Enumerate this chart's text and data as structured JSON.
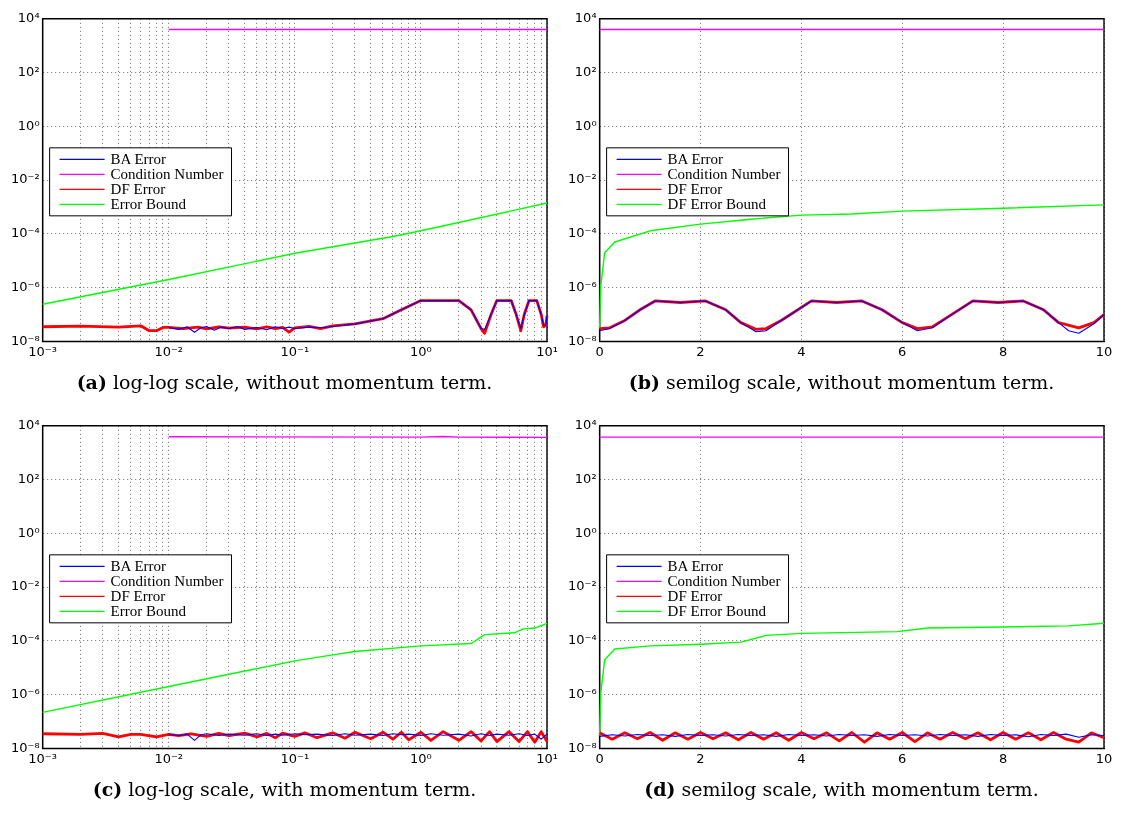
{
  "chart_data": [
    {
      "type": "line",
      "title": "(a) log-log scale, without momentum term.",
      "log": "xy",
      "grid": true,
      "legend": "left",
      "marker": "none",
      "xlim": [
        0.001,
        10
      ],
      "ylim": [
        1e-08,
        10000
      ],
      "xticks": [
        {
          "value": 0.001,
          "label": "10⁻³"
        },
        {
          "value": 0.002,
          "label": null
        },
        {
          "value": 0.003,
          "label": null
        },
        {
          "value": 0.004,
          "label": null
        },
        {
          "value": 0.005,
          "label": null
        },
        {
          "value": 0.006,
          "label": null
        },
        {
          "value": 0.007,
          "label": null
        },
        {
          "value": 0.008,
          "label": null
        },
        {
          "value": 0.009,
          "label": null
        },
        {
          "value": 0.01,
          "label": "10⁻²"
        },
        {
          "value": 0.02,
          "label": null
        },
        {
          "value": 0.03,
          "label": null
        },
        {
          "value": 0.04,
          "label": null
        },
        {
          "value": 0.05,
          "label": null
        },
        {
          "value": 0.06,
          "label": null
        },
        {
          "value": 0.07,
          "label": null
        },
        {
          "value": 0.08,
          "label": null
        },
        {
          "value": 0.09,
          "label": null
        },
        {
          "value": 0.1,
          "label": "10⁻¹"
        },
        {
          "value": 0.2,
          "label": null
        },
        {
          "value": 0.3,
          "label": null
        },
        {
          "value": 0.4,
          "label": null
        },
        {
          "value": 0.5,
          "label": null
        },
        {
          "value": 0.6,
          "label": null
        },
        {
          "value": 0.7,
          "label": null
        },
        {
          "value": 0.8,
          "label": null
        },
        {
          "value": 0.9,
          "label": null
        },
        {
          "value": 1,
          "label": "10⁰"
        },
        {
          "value": 2,
          "label": null
        },
        {
          "value": 3,
          "label": null
        },
        {
          "value": 4,
          "label": null
        },
        {
          "value": 5,
          "label": null
        },
        {
          "value": 6,
          "label": null
        },
        {
          "value": 7,
          "label": null
        },
        {
          "value": 8,
          "label": null
        },
        {
          "value": 9,
          "label": null
        },
        {
          "value": 10,
          "label": "10¹"
        }
      ],
      "yticks": [
        {
          "value": 1e-08,
          "label": "10⁻⁸"
        },
        {
          "value": 1e-06,
          "label": "10⁻⁶"
        },
        {
          "value": 0.0001,
          "label": "10⁻⁴"
        },
        {
          "value": 0.01,
          "label": "10⁻²"
        },
        {
          "value": 1,
          "label": "10⁰"
        },
        {
          "value": 100,
          "label": "10²"
        },
        {
          "value": 10000,
          "label": "10⁴"
        }
      ],
      "series": [
        {
          "name": "BA Error",
          "type": "line",
          "color": "#0000ff",
          "x": [
            0.01,
            0.012,
            0.014,
            0.016,
            0.018,
            0.02,
            0.023,
            0.026,
            0.03,
            0.035,
            0.04,
            0.05,
            0.06,
            0.07,
            0.08,
            0.09,
            0.1,
            0.13,
            0.16,
            0.2,
            0.3,
            0.5,
            0.7,
            1,
            2,
            2.5,
            3,
            3.2,
            3.6,
            4,
            5.2,
            5.7,
            6.2,
            6.6,
            7.2,
            8.3,
            9,
            9.4,
            9.8,
            10
          ],
          "values": [
            3.3e-08,
            2.8e-08,
            3.5e-08,
            2.2e-08,
            3.2e-08,
            3.6e-08,
            2.6e-08,
            3.4e-08,
            3e-08,
            3.6e-08,
            2.8e-08,
            3.3e-08,
            2.7e-08,
            3.5e-08,
            3e-08,
            3.4e-08,
            3e-08,
            3.4e-08,
            3.2e-08,
            3.6e-08,
            4.5e-08,
            7e-08,
            1.5e-07,
            3.3e-07,
            3.3e-07,
            1.5e-07,
            3e-08,
            2.8e-08,
            1e-07,
            3.3e-07,
            3.3e-07,
            1e-07,
            3e-08,
            1e-07,
            3.3e-07,
            3.3e-07,
            1e-07,
            4e-08,
            4e-08,
            9e-08
          ]
        },
        {
          "name": "Condition Number",
          "type": "line",
          "color": "#ff00ff",
          "x": [
            0.01,
            10
          ],
          "values": [
            4000,
            4000
          ]
        },
        {
          "name": "DF Error",
          "type": "line",
          "color": "#ff0000",
          "x": [
            0.001,
            0.002,
            0.004,
            0.006,
            0.007,
            0.008,
            0.009,
            0.01,
            0.013,
            0.017,
            0.02,
            0.025,
            0.03,
            0.04,
            0.05,
            0.06,
            0.07,
            0.08,
            0.09,
            0.1,
            0.13,
            0.16,
            0.2,
            0.3,
            0.5,
            0.7,
            1,
            2,
            2.5,
            3,
            3.2,
            3.6,
            4,
            5.2,
            5.7,
            6.2,
            6.6,
            7.2,
            8.3,
            9,
            9.4,
            9.8,
            10
          ],
          "values": [
            3.5e-08,
            3.7e-08,
            3.4e-08,
            3.8e-08,
            2.5e-08,
            2.5e-08,
            3.3e-08,
            3.3e-08,
            3e-08,
            3.4e-08,
            2.9e-08,
            3.5e-08,
            3.1e-08,
            3.4e-08,
            2.9e-08,
            3.5e-08,
            3e-08,
            3.3e-08,
            2.2e-08,
            3.2e-08,
            3.6e-08,
            3e-08,
            3.8e-08,
            4.5e-08,
            7e-08,
            1.5e-07,
            3.3e-07,
            3.3e-07,
            1.5e-07,
            3e-08,
            2e-08,
            1e-07,
            3.3e-07,
            3.3e-07,
            1e-07,
            2.5e-08,
            1e-07,
            3.3e-07,
            3.3e-07,
            1e-07,
            3.5e-08,
            4e-08,
            9e-08
          ]
        },
        {
          "name": "Error Bound",
          "type": "line",
          "color": "#00ff00",
          "x": [
            0.001,
            0.01,
            0.1,
            0.6,
            1,
            10
          ],
          "values": [
            2.4e-07,
            2e-06,
            1.9e-05,
            8e-05,
            0.00013,
            0.0014
          ]
        }
      ]
    },
    {
      "type": "line",
      "title": "(b) semilog scale, without momentum term.",
      "log": "y",
      "grid": true,
      "legend": "left",
      "marker": "none",
      "xlim": [
        0,
        10
      ],
      "ylim": [
        1e-08,
        10000
      ],
      "xticks": [
        0,
        2,
        4,
        6,
        8,
        10
      ],
      "yticks": [
        {
          "value": 1e-08,
          "label": "10⁻⁸"
        },
        {
          "value": 1e-06,
          "label": "10⁻⁶"
        },
        {
          "value": 0.0001,
          "label": "10⁻⁴"
        },
        {
          "value": 0.01,
          "label": "10⁻²"
        },
        {
          "value": 1,
          "label": "10⁰"
        },
        {
          "value": 100,
          "label": "10²"
        },
        {
          "value": 10000,
          "label": "10⁴"
        }
      ],
      "series": [
        {
          "name": "BA Error",
          "type": "line",
          "color": "#0000ff",
          "x": [
            0,
            0.2,
            0.5,
            0.8,
            1.1,
            1.6,
            2.1,
            2.5,
            2.8,
            3.1,
            3.3,
            3.6,
            4.2,
            4.7,
            5.2,
            5.6,
            6,
            6.3,
            6.6,
            6.9,
            7.4,
            7.9,
            8.4,
            8.8,
            9.1,
            9.3,
            9.5,
            9.8,
            10
          ],
          "values": [
            2.5e-08,
            3e-08,
            6e-08,
            1.5e-07,
            3.2e-07,
            2.8e-07,
            3.2e-07,
            1.5e-07,
            5e-08,
            2.3e-08,
            2.5e-08,
            6e-08,
            3.2e-07,
            2.8e-07,
            3.2e-07,
            1.5e-07,
            5e-08,
            2.5e-08,
            3.2e-08,
            8e-08,
            3.2e-07,
            2.8e-07,
            3.2e-07,
            1.5e-07,
            5e-08,
            2.5e-08,
            2e-08,
            4.5e-08,
            1e-07
          ]
        },
        {
          "name": "Condition Number",
          "type": "line",
          "color": "#ff00ff",
          "x": [
            0,
            10
          ],
          "values": [
            4000,
            4000
          ]
        },
        {
          "name": "DF Error",
          "type": "line",
          "color": "#ff0000",
          "x": [
            0,
            0.2,
            0.5,
            0.8,
            1.1,
            1.6,
            2.1,
            2.5,
            2.8,
            3.1,
            3.3,
            3.6,
            4.2,
            4.7,
            5.2,
            5.6,
            6,
            6.3,
            6.6,
            6.9,
            7.4,
            7.9,
            8.4,
            8.8,
            9.1,
            9.5,
            9.8,
            10
          ],
          "values": [
            3e-08,
            3.2e-08,
            6e-08,
            1.5e-07,
            3.2e-07,
            2.8e-07,
            3.2e-07,
            1.5e-07,
            5e-08,
            2.8e-08,
            3e-08,
            6e-08,
            3.2e-07,
            2.8e-07,
            3.2e-07,
            1.5e-07,
            5e-08,
            3e-08,
            3.5e-08,
            8e-08,
            3.2e-07,
            2.8e-07,
            3.2e-07,
            1.5e-07,
            5e-08,
            3.2e-08,
            5e-08,
            1e-07
          ]
        },
        {
          "name": "DF Error Bound",
          "type": "line",
          "color": "#00ff00",
          "x": [
            0,
            0.02,
            0.1,
            0.3,
            1,
            2,
            3,
            4,
            5,
            6,
            8,
            10
          ],
          "values": [
            3e-08,
            1e-06,
            2e-05,
            5e-05,
            0.00013,
            0.00023,
            0.00035,
            0.0005,
            0.00055,
            0.0007,
            0.0009,
            0.0012
          ]
        }
      ]
    },
    {
      "type": "line",
      "title": "(c) log-log scale, with momentum term.",
      "log": "xy",
      "grid": true,
      "legend": "left",
      "marker": "none",
      "xlim": [
        0.001,
        10
      ],
      "ylim": [
        1e-08,
        10000
      ],
      "xticks": [
        {
          "value": 0.001,
          "label": "10⁻³"
        },
        {
          "value": 0.002,
          "label": null
        },
        {
          "value": 0.003,
          "label": null
        },
        {
          "value": 0.004,
          "label": null
        },
        {
          "value": 0.005,
          "label": null
        },
        {
          "value": 0.006,
          "label": null
        },
        {
          "value": 0.007,
          "label": null
        },
        {
          "value": 0.008,
          "label": null
        },
        {
          "value": 0.009,
          "label": null
        },
        {
          "value": 0.01,
          "label": "10⁻²"
        },
        {
          "value": 0.02,
          "label": null
        },
        {
          "value": 0.03,
          "label": null
        },
        {
          "value": 0.04,
          "label": null
        },
        {
          "value": 0.05,
          "label": null
        },
        {
          "value": 0.06,
          "label": null
        },
        {
          "value": 0.07,
          "label": null
        },
        {
          "value": 0.08,
          "label": null
        },
        {
          "value": 0.09,
          "label": null
        },
        {
          "value": 0.1,
          "label": "10⁻¹"
        },
        {
          "value": 0.2,
          "label": null
        },
        {
          "value": 0.3,
          "label": null
        },
        {
          "value": 0.4,
          "label": null
        },
        {
          "value": 0.5,
          "label": null
        },
        {
          "value": 0.6,
          "label": null
        },
        {
          "value": 0.7,
          "label": null
        },
        {
          "value": 0.8,
          "label": null
        },
        {
          "value": 0.9,
          "label": null
        },
        {
          "value": 1,
          "label": "10⁰"
        },
        {
          "value": 2,
          "label": null
        },
        {
          "value": 3,
          "label": null
        },
        {
          "value": 4,
          "label": null
        },
        {
          "value": 5,
          "label": null
        },
        {
          "value": 6,
          "label": null
        },
        {
          "value": 7,
          "label": null
        },
        {
          "value": 8,
          "label": null
        },
        {
          "value": 9,
          "label": null
        },
        {
          "value": 10,
          "label": "10¹"
        }
      ],
      "yticks": [
        {
          "value": 1e-08,
          "label": "10⁻⁸"
        },
        {
          "value": 1e-06,
          "label": "10⁻⁶"
        },
        {
          "value": 0.0001,
          "label": "10⁻⁴"
        },
        {
          "value": 0.01,
          "label": "10⁻²"
        },
        {
          "value": 1,
          "label": "10⁰"
        },
        {
          "value": 100,
          "label": "10²"
        },
        {
          "value": 10000,
          "label": "10⁴"
        }
      ],
      "series": [
        {
          "name": "BA Error",
          "type": "line",
          "color": "#0000ff",
          "x": [
            0.01,
            0.012,
            0.014,
            0.016,
            0.018,
            0.02,
            0.025,
            0.03,
            0.04,
            0.05,
            0.06,
            0.07,
            0.08,
            0.1,
            0.12,
            0.15,
            0.2,
            0.25,
            0.3,
            0.4,
            0.5,
            0.6,
            0.7,
            0.8,
            1,
            1.2,
            1.5,
            2,
            2.5,
            3,
            3.5,
            4,
            5,
            6,
            7,
            8,
            9,
            10
          ],
          "values": [
            3.3e-08,
            3e-08,
            3.4e-08,
            2e-08,
            3.2e-08,
            3.5e-08,
            3e-08,
            3.4e-08,
            3.1e-08,
            3.5e-08,
            3e-08,
            3.4e-08,
            3.1e-08,
            3.5e-08,
            3.2e-08,
            3.4e-08,
            3e-08,
            3.5e-08,
            3.1e-08,
            3.4e-08,
            3e-08,
            3.5e-08,
            3.2e-08,
            3.4e-08,
            3e-08,
            3.5e-08,
            3.1e-08,
            3.4e-08,
            2.9e-08,
            3.5e-08,
            3e-08,
            3.4e-08,
            3.1e-08,
            3.5e-08,
            3e-08,
            3.4e-08,
            2.2e-08,
            3.4e-08
          ]
        },
        {
          "name": "Condition Number",
          "type": "line",
          "color": "#ff00ff",
          "x": [
            0.01,
            1,
            1.5,
            2,
            10
          ],
          "values": [
            3900,
            3800,
            4000,
            3800,
            3700
          ]
        },
        {
          "name": "DF Error",
          "type": "line",
          "color": "#ff0000",
          "x": [
            0.001,
            0.002,
            0.003,
            0.004,
            0.005,
            0.006,
            0.008,
            0.01,
            0.012,
            0.015,
            0.02,
            0.025,
            0.03,
            0.04,
            0.05,
            0.06,
            0.07,
            0.08,
            0.1,
            0.12,
            0.15,
            0.2,
            0.25,
            0.3,
            0.4,
            0.5,
            0.6,
            0.7,
            0.8,
            1,
            1.2,
            1.5,
            2,
            2.5,
            3,
            3.5,
            4,
            5,
            6,
            7,
            8,
            9,
            10
          ],
          "values": [
            3.5e-08,
            3.3e-08,
            3.6e-08,
            2.7e-08,
            3.3e-08,
            3.3e-08,
            2.7e-08,
            3.3e-08,
            3e-08,
            3.5e-08,
            2.8e-08,
            3.6e-08,
            3e-08,
            3.7e-08,
            2.7e-08,
            3.6e-08,
            2.5e-08,
            3.7e-08,
            2.8e-08,
            3.8e-08,
            2.5e-08,
            3.8e-08,
            2.4e-08,
            4e-08,
            2.3e-08,
            4e-08,
            2.2e-08,
            4e-08,
            2.1e-08,
            4e-08,
            2e-08,
            4.2e-08,
            2e-08,
            4.2e-08,
            1.9e-08,
            4.2e-08,
            1.8e-08,
            4.2e-08,
            1.8e-08,
            4.2e-08,
            1.7e-08,
            4.2e-08,
            1.8e-08
          ]
        },
        {
          "name": "Error Bound",
          "type": "line",
          "color": "#00ff00",
          "x": [
            0.001,
            0.01,
            0.1,
            0.2,
            0.3,
            1,
            2.5,
            3.2,
            5.5,
            6.5,
            8,
            10
          ],
          "values": [
            2.2e-07,
            2e-06,
            1.8e-05,
            3e-05,
            4e-05,
            6.5e-05,
            8e-05,
            0.00017,
            0.0002,
            0.00028,
            0.0003,
            0.00045
          ]
        }
      ]
    },
    {
      "type": "line",
      "title": "(d) semilog scale, with momentum term.",
      "log": "y",
      "grid": true,
      "legend": "left",
      "marker": "none",
      "xlim": [
        0,
        10
      ],
      "ylim": [
        1e-08,
        10000
      ],
      "xticks": [
        0,
        2,
        4,
        6,
        8,
        10
      ],
      "yticks": [
        {
          "value": 1e-08,
          "label": "10⁻⁸"
        },
        {
          "value": 1e-06,
          "label": "10⁻⁶"
        },
        {
          "value": 0.0001,
          "label": "10⁻⁴"
        },
        {
          "value": 0.01,
          "label": "10⁻²"
        },
        {
          "value": 1,
          "label": "10⁰"
        },
        {
          "value": 100,
          "label": "10²"
        },
        {
          "value": 10000,
          "label": "10⁴"
        }
      ],
      "series": [
        {
          "name": "BA Error",
          "type": "line",
          "color": "#0000ff",
          "x": [
            0,
            0.25,
            0.5,
            0.75,
            1,
            1.25,
            1.5,
            1.75,
            2,
            2.25,
            2.5,
            2.75,
            3,
            3.25,
            3.5,
            3.75,
            4,
            4.25,
            4.5,
            4.75,
            5,
            5.25,
            5.5,
            5.75,
            6,
            6.25,
            6.5,
            6.75,
            7,
            7.25,
            7.5,
            7.75,
            8,
            8.25,
            8.5,
            8.75,
            9,
            9.25,
            9.5,
            9.75,
            10
          ],
          "values": [
            2.8e-08,
            3.2e-08,
            2.9e-08,
            3.3e-08,
            3e-08,
            3.2e-08,
            2.8e-08,
            3.3e-08,
            3e-08,
            3.2e-08,
            2.9e-08,
            3.3e-08,
            3e-08,
            3.2e-08,
            2.8e-08,
            3.3e-08,
            3e-08,
            3.2e-08,
            2.9e-08,
            3.3e-08,
            3e-08,
            3.2e-08,
            2.8e-08,
            3.3e-08,
            3e-08,
            3.2e-08,
            2.9e-08,
            3.3e-08,
            3e-08,
            3.2e-08,
            2.8e-08,
            3.3e-08,
            3e-08,
            3.2e-08,
            2.7e-08,
            3.3e-08,
            3e-08,
            3.4e-08,
            2.6e-08,
            3.2e-08,
            3e-08
          ]
        },
        {
          "name": "Condition Number",
          "type": "line",
          "color": "#ff00ff",
          "x": [
            0,
            10
          ],
          "values": [
            3800,
            3800
          ]
        },
        {
          "name": "DF Error",
          "type": "line",
          "color": "#ff0000",
          "x": [
            0,
            0.25,
            0.5,
            0.75,
            1,
            1.25,
            1.5,
            1.75,
            2,
            2.25,
            2.5,
            2.75,
            3,
            3.25,
            3.5,
            3.75,
            4,
            4.25,
            4.5,
            4.75,
            5,
            5.25,
            5.5,
            5.75,
            6,
            6.25,
            6.5,
            6.75,
            7,
            7.25,
            7.5,
            7.75,
            8,
            8.25,
            8.5,
            8.75,
            9,
            9.25,
            9.5,
            9.75,
            10
          ],
          "values": [
            3.8e-08,
            2.2e-08,
            3.8e-08,
            2.3e-08,
            3.9e-08,
            2e-08,
            3.8e-08,
            2.2e-08,
            3.9e-08,
            2.3e-08,
            3.8e-08,
            2.1e-08,
            3.9e-08,
            2.2e-08,
            3.8e-08,
            2e-08,
            3.9e-08,
            2.3e-08,
            3.8e-08,
            1.9e-08,
            3.9e-08,
            1.7e-08,
            3.8e-08,
            2.2e-08,
            3.9e-08,
            1.8e-08,
            3.8e-08,
            2.2e-08,
            3.9e-08,
            2.3e-08,
            3.8e-08,
            2.1e-08,
            3.9e-08,
            2.2e-08,
            3.8e-08,
            2.1e-08,
            3.9e-08,
            2.2e-08,
            1.7e-08,
            3.8e-08,
            2.5e-08
          ]
        },
        {
          "name": "DF Error Bound",
          "type": "line",
          "color": "#00ff00",
          "x": [
            0,
            0.02,
            0.1,
            0.3,
            1,
            2,
            2.8,
            3.3,
            4,
            5.9,
            6.5,
            8,
            9.3,
            10
          ],
          "values": [
            3e-08,
            1e-06,
            2e-05,
            5e-05,
            6.5e-05,
            7.5e-05,
            9e-05,
            0.00016,
            0.00019,
            0.00022,
            0.0003,
            0.00033,
            0.00036,
            0.00045
          ]
        }
      ]
    }
  ]
}
